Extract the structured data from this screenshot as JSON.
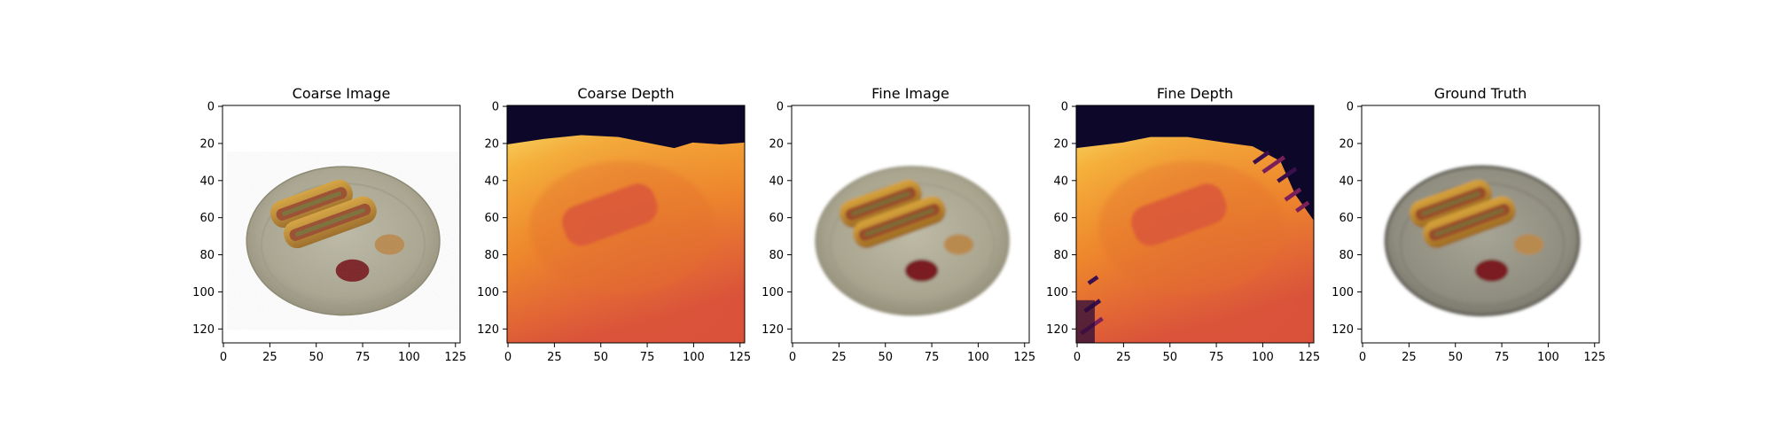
{
  "chart_data": [
    {
      "type": "image",
      "title": "Coarse Image",
      "image_content": "hot dogs on a plate, noisy render",
      "colormap": "rgb",
      "xlim": [
        0,
        127
      ],
      "ylim": [
        127,
        0
      ],
      "xticks": [
        0,
        25,
        50,
        75,
        100,
        125
      ],
      "yticks": [
        0,
        20,
        40,
        60,
        80,
        100,
        120
      ]
    },
    {
      "type": "heatmap",
      "title": "Coarse Depth",
      "colormap": "inferno",
      "xlim": [
        0,
        127
      ],
      "ylim": [
        127,
        0
      ],
      "xticks": [
        0,
        25,
        50,
        75,
        100,
        125
      ],
      "yticks": [
        0,
        20,
        40,
        60,
        80,
        100,
        120
      ]
    },
    {
      "type": "image",
      "title": "Fine Image",
      "image_content": "hot dogs on a plate, refined render",
      "colormap": "rgb",
      "xlim": [
        0,
        127
      ],
      "ylim": [
        127,
        0
      ],
      "xticks": [
        0,
        25,
        50,
        75,
        100,
        125
      ],
      "yticks": [
        0,
        20,
        40,
        60,
        80,
        100,
        120
      ]
    },
    {
      "type": "heatmap",
      "title": "Fine Depth",
      "colormap": "inferno",
      "xlim": [
        0,
        127
      ],
      "ylim": [
        127,
        0
      ],
      "xticks": [
        0,
        25,
        50,
        75,
        100,
        125
      ],
      "yticks": [
        0,
        20,
        40,
        60,
        80,
        100,
        120
      ]
    },
    {
      "type": "image",
      "title": "Ground Truth",
      "image_content": "hot dogs on a plate, ground truth photo",
      "colormap": "rgb",
      "xlim": [
        0,
        127
      ],
      "ylim": [
        127,
        0
      ],
      "xticks": [
        0,
        25,
        50,
        75,
        100,
        125
      ],
      "yticks": [
        0,
        20,
        40,
        60,
        80,
        100,
        120
      ]
    }
  ],
  "colors": {
    "depth_dark": "#0d0829",
    "depth_yellow": "#f2d463",
    "depth_orange": "#f39a2c",
    "depth_red": "#d3453e",
    "plate": "#a8a48f",
    "bun": "#c9912f",
    "sausage": "#9a4a2a",
    "ketchup": "#7a1f22",
    "mustard": "#b98a4e"
  }
}
